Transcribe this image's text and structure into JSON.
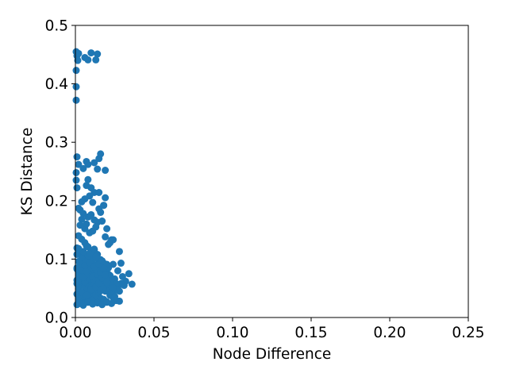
{
  "chart_data": {
    "type": "scatter",
    "xlabel": "Node Difference",
    "ylabel": "KS Distance",
    "xlim": [
      0,
      0.25
    ],
    "ylim": [
      0,
      0.5
    ],
    "xticks": [
      0.0,
      0.05,
      0.1,
      0.15,
      0.2,
      0.25
    ],
    "xtick_labels": [
      "0.00",
      "0.05",
      "0.10",
      "0.15",
      "0.20",
      "0.25"
    ],
    "yticks": [
      0.0,
      0.1,
      0.2,
      0.3,
      0.4,
      0.5
    ],
    "ytick_labels": [
      "0.0",
      "0.1",
      "0.2",
      "0.3",
      "0.4",
      "0.5"
    ],
    "grid": false,
    "marker_color": "#1f77b4",
    "series": [
      {
        "x": [
          0.0005,
          0.001,
          0.0015,
          0.002,
          0.006,
          0.008,
          0.01,
          0.014,
          0.013,
          0.0005,
          0.0005,
          0.0005,
          0.001,
          0.002,
          0.0005,
          0.0005,
          0.001,
          0.005,
          0.007,
          0.008,
          0.012,
          0.015,
          0.016,
          0.014,
          0.019,
          0.008,
          0.01,
          0.012,
          0.007,
          0.015,
          0.019,
          0.018,
          0.011,
          0.009,
          0.006,
          0.004,
          0.003,
          0.002,
          0.005,
          0.008,
          0.01,
          0.012,
          0.014,
          0.015,
          0.017,
          0.02,
          0.021,
          0.023,
          0.006,
          0.009,
          0.013,
          0.016,
          0.018,
          0.004,
          0.007,
          0.011,
          0.019,
          0.003,
          0.022,
          0.024,
          0.028,
          0.029,
          0.027,
          0.03,
          0.032,
          0.034,
          0.036,
          0.031,
          0.026,
          0.025,
          0.023,
          0.02,
          0.018,
          0.021,
          0.024,
          0.028,
          0.016,
          0.014,
          0.012,
          0.01,
          0.008,
          0.006,
          0.004,
          0.002,
          0.013,
          0.017,
          0.019,
          0.022,
          0.015,
          0.011,
          0.009,
          0.007,
          0.005,
          0.003,
          0.001,
          0.002,
          0.004,
          0.006,
          0.008,
          0.01,
          0.012,
          0.014,
          0.016,
          0.018,
          0.02,
          0.022,
          0.024,
          0.026,
          0.028,
          0.001,
          0.003,
          0.005,
          0.007,
          0.009,
          0.011,
          0.013,
          0.015,
          0.017,
          0.019,
          0.021,
          0.023,
          0.025,
          0.027,
          0.029,
          0.002,
          0.004,
          0.006,
          0.008,
          0.01,
          0.012,
          0.014,
          0.016,
          0.018,
          0.02,
          0.022,
          0.001,
          0.003,
          0.005,
          0.007,
          0.009,
          0.011,
          0.013,
          0.015,
          0.017,
          0.019,
          0.021,
          0.023,
          0.025,
          0.002,
          0.004,
          0.006,
          0.008,
          0.01,
          0.012,
          0.014,
          0.016,
          0.018,
          0.02,
          0.001,
          0.003,
          0.005,
          0.007,
          0.009,
          0.011,
          0.013,
          0.015,
          0.017,
          0.019,
          0.021,
          0.024,
          0.026,
          0.002,
          0.006,
          0.01,
          0.014,
          0.018,
          0.004,
          0.008,
          0.012,
          0.016,
          0.02,
          0.001,
          0.003,
          0.005,
          0.008,
          0.011,
          0.014,
          0.017,
          0.02,
          0.023,
          0.002,
          0.004,
          0.007,
          0.01,
          0.013,
          0.016,
          0.019,
          0.022,
          0.001,
          0.003,
          0.006,
          0.009,
          0.012,
          0.015,
          0.018,
          0.021,
          0.024,
          0.002,
          0.005,
          0.008,
          0.011,
          0.014,
          0.017,
          0.02,
          0.001,
          0.004,
          0.007,
          0.01,
          0.013,
          0.016,
          0.019,
          0.003,
          0.006,
          0.009,
          0.012,
          0.015,
          0.018,
          0.001,
          0.005,
          0.009,
          0.013,
          0.017,
          0.002,
          0.007,
          0.012
        ],
        "y": [
          0.455,
          0.448,
          0.44,
          0.452,
          0.445,
          0.441,
          0.453,
          0.451,
          0.441,
          0.423,
          0.395,
          0.372,
          0.275,
          0.262,
          0.248,
          0.235,
          0.222,
          0.255,
          0.267,
          0.262,
          0.265,
          0.272,
          0.28,
          0.254,
          0.252,
          0.236,
          0.222,
          0.214,
          0.226,
          0.214,
          0.205,
          0.192,
          0.197,
          0.208,
          0.203,
          0.198,
          0.184,
          0.187,
          0.178,
          0.172,
          0.176,
          0.167,
          0.163,
          0.186,
          0.165,
          0.152,
          0.125,
          0.133,
          0.152,
          0.145,
          0.155,
          0.18,
          0.192,
          0.168,
          0.16,
          0.148,
          0.138,
          0.158,
          0.128,
          0.133,
          0.113,
          0.093,
          0.08,
          0.07,
          0.062,
          0.075,
          0.057,
          0.055,
          0.047,
          0.055,
          0.061,
          0.068,
          0.077,
          0.085,
          0.091,
          0.045,
          0.099,
          0.108,
          0.116,
          0.112,
          0.121,
          0.128,
          0.134,
          0.14,
          0.09,
          0.095,
          0.082,
          0.072,
          0.066,
          0.079,
          0.087,
          0.095,
          0.103,
          0.111,
          0.119,
          0.028,
          0.03,
          0.025,
          0.032,
          0.027,
          0.035,
          0.029,
          0.033,
          0.031,
          0.026,
          0.038,
          0.034,
          0.029,
          0.028,
          0.04,
          0.042,
          0.037,
          0.044,
          0.041,
          0.046,
          0.039,
          0.043,
          0.048,
          0.045,
          0.047,
          0.041,
          0.036,
          0.052,
          0.058,
          0.05,
          0.055,
          0.053,
          0.057,
          0.051,
          0.06,
          0.049,
          0.056,
          0.062,
          0.054,
          0.059,
          0.064,
          0.066,
          0.068,
          0.063,
          0.07,
          0.065,
          0.072,
          0.067,
          0.071,
          0.069,
          0.074,
          0.061,
          0.066,
          0.076,
          0.078,
          0.073,
          0.08,
          0.077,
          0.082,
          0.075,
          0.079,
          0.083,
          0.071,
          0.085,
          0.088,
          0.086,
          0.09,
          0.084,
          0.092,
          0.087,
          0.089,
          0.094,
          0.081,
          0.086,
          0.062,
          0.058,
          0.096,
          0.099,
          0.097,
          0.101,
          0.093,
          0.104,
          0.106,
          0.102,
          0.098,
          0.091,
          0.022,
          0.024,
          0.021,
          0.026,
          0.023,
          0.025,
          0.022,
          0.027,
          0.024,
          0.035,
          0.043,
          0.038,
          0.048,
          0.052,
          0.046,
          0.053,
          0.049,
          0.058,
          0.063,
          0.061,
          0.067,
          0.064,
          0.059,
          0.065,
          0.057,
          0.051,
          0.072,
          0.069,
          0.075,
          0.07,
          0.074,
          0.068,
          0.06,
          0.083,
          0.081,
          0.079,
          0.086,
          0.082,
          0.077,
          0.073,
          0.092,
          0.089,
          0.094,
          0.087,
          0.091,
          0.084,
          0.108,
          0.113,
          0.11,
          0.104,
          0.097,
          0.118,
          0.123,
          0.117
        ]
      }
    ]
  }
}
